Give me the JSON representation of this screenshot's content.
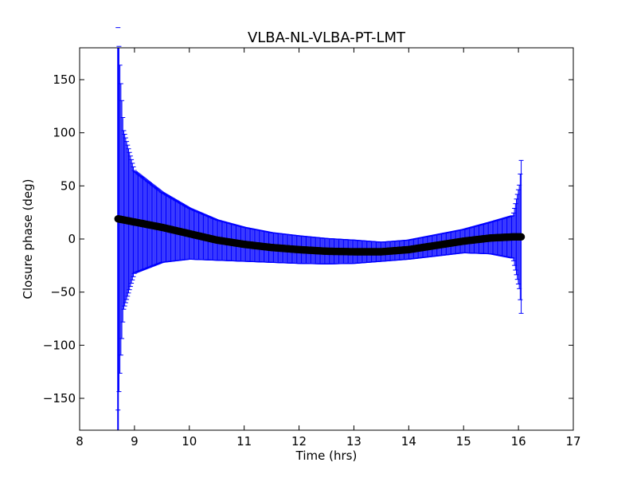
{
  "chart_data": {
    "type": "scatter",
    "title": "VLBA-NL-VLBA-PT-LMT",
    "xlabel": "Time (hrs)",
    "ylabel": "Closure phase (deg)",
    "xlim": [
      8,
      17
    ],
    "ylim": [
      -180,
      180
    ],
    "xticks": [
      "8",
      "9",
      "10",
      "11",
      "12",
      "13",
      "14",
      "15",
      "16",
      "17"
    ],
    "yticks": [
      "−150",
      "−100",
      "−50",
      "0",
      "50",
      "100",
      "150"
    ],
    "grid": false,
    "colors": {
      "points": "#000000",
      "errorbars": "#0000ff"
    },
    "series": [
      {
        "x": [
          8.7,
          8.75,
          8.8,
          9.0,
          9.5,
          10.0,
          10.5,
          11.0,
          11.5,
          12.0,
          12.5,
          13.0,
          13.5,
          14.0,
          14.5,
          15.0,
          15.5,
          15.9,
          16.02,
          16.05
        ],
        "y": [
          19,
          18.5,
          18,
          16,
          11,
          5,
          -1,
          -5,
          -8,
          -10,
          -11.5,
          -12,
          -12,
          -10,
          -6,
          -2,
          1,
          2,
          2,
          2
        ],
        "err": [
          180,
          130,
          85,
          48,
          33,
          24,
          19,
          16,
          14,
          13,
          12,
          11,
          9,
          9,
          10,
          11,
          15,
          20,
          50,
          72
        ]
      }
    ]
  }
}
